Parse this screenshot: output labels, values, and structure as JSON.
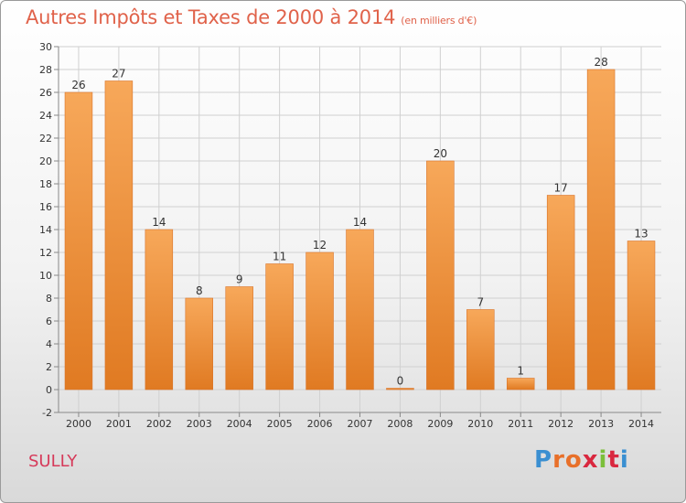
{
  "title": "Autres Impôts et Taxes de 2000 à 2014",
  "unit": "(en milliers d'€)",
  "city": "SULLY",
  "logo": {
    "letters": [
      "P",
      "r",
      "o",
      "x",
      "i",
      "t",
      "i"
    ],
    "colors": [
      "#3a8fd1",
      "#e8702a",
      "#e8702a",
      "#d9283f",
      "#7bbf3a",
      "#d9283f",
      "#3a8fd1"
    ]
  },
  "colors": {
    "bar_light": "#f7a85a",
    "bar_dark": "#e07a22",
    "title": "#e0624a",
    "city": "#d63a5a"
  },
  "chart_data": {
    "type": "bar",
    "categories": [
      "2000",
      "2001",
      "2002",
      "2003",
      "2004",
      "2005",
      "2006",
      "2007",
      "2008",
      "2009",
      "2010",
      "2011",
      "2012",
      "2013",
      "2014"
    ],
    "values": [
      26,
      27,
      14,
      8,
      9,
      11,
      12,
      14,
      0,
      20,
      7,
      1,
      17,
      28,
      13
    ],
    "ylim": [
      -2,
      30
    ],
    "yticks": [
      -2,
      0,
      2,
      4,
      6,
      8,
      10,
      12,
      14,
      16,
      18,
      20,
      22,
      24,
      26,
      28,
      30
    ],
    "grid": true
  }
}
